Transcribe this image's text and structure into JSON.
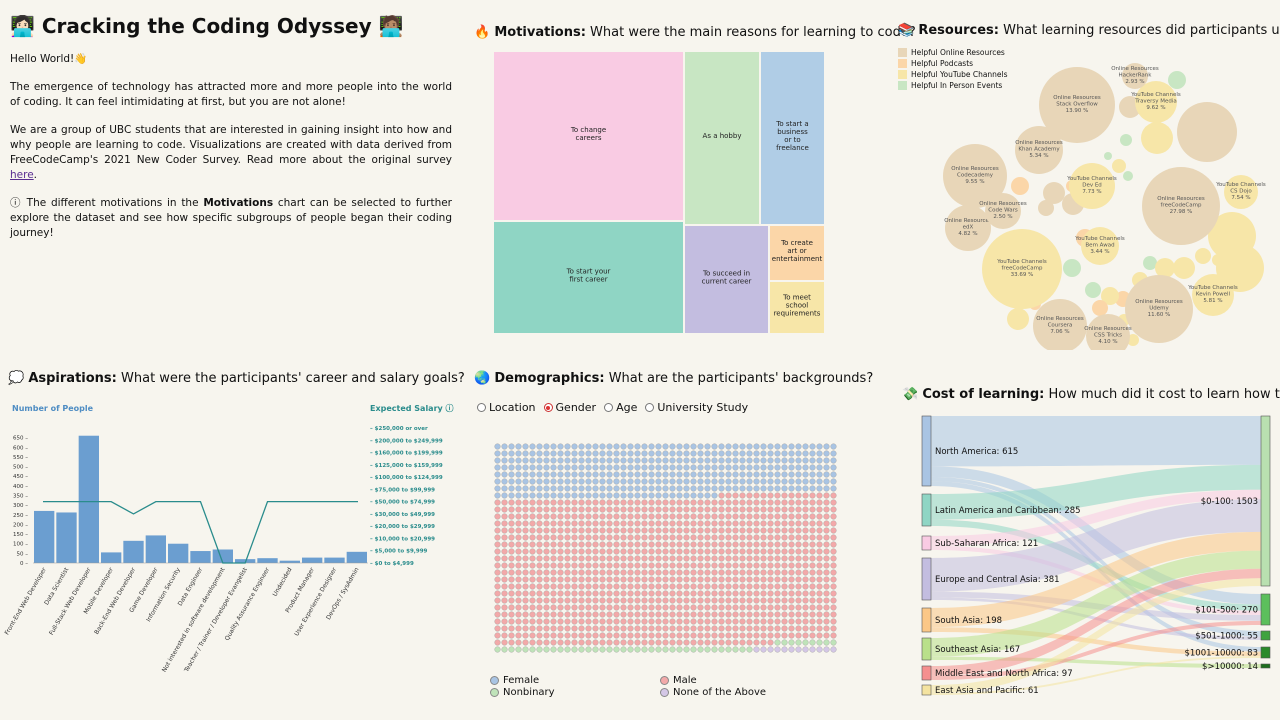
{
  "intro": {
    "title": "Cracking the Coding Odyssey",
    "greeting": "Hello World!👋",
    "p1": "The emergence of technology has attracted more and more people into the world of coding. It can feel intimidating at first, but you are not alone!",
    "p2_before": "We are a group of UBC students that are interested in gaining insight into how and why people are learning to code. Visualizations are created with data derived from FreeCodeCamp's 2021 New Coder Survey. Read more about the original survey ",
    "p2_link": "here",
    "p2_after": ".",
    "p3_before": "ⓘ The different motivations in the ",
    "p3_bold": "Motivations",
    "p3_after": " chart can be selected to further explore the dataset and see how specific subgroups of people began their coding journey!"
  },
  "motivations": {
    "title_bold": "Motivations:",
    "title_rest": " What were the main reasons for learning to code?",
    "cells": [
      {
        "label": "To change careers",
        "color": "#f9cbe3"
      },
      {
        "label": "As a hobby",
        "color": "#c8e6c3"
      },
      {
        "label": "To start a business or to freelance",
        "color": "#b0cde6"
      },
      {
        "label": "To start your first career",
        "color": "#8fd5c4"
      },
      {
        "label": "To succeed in current career",
        "color": "#c3bde0"
      },
      {
        "label": "To create art or entertainment",
        "color": "#fbd6a8"
      },
      {
        "label": "To meet school requirements",
        "color": "#f7e6a8"
      }
    ]
  },
  "resources": {
    "title_bold": "Resources:",
    "title_rest": " What learning resources did participants use?",
    "legend": [
      {
        "label": "Helpful Online Resources",
        "color": "#e8d6b8"
      },
      {
        "label": "Helpful Podcasts",
        "color": "#fbd6a8"
      },
      {
        "label": "Helpful YouTube Channels",
        "color": "#f7e6a8"
      },
      {
        "label": "Helpful In Person Events",
        "color": "#c8e6c3"
      }
    ],
    "bubbles": [
      {
        "name": "Online Resources",
        "sub": "freeCodeCamp",
        "pct": "27.98 %",
        "color": "#e8d6b8"
      },
      {
        "name": "YouTube Channels",
        "sub": "freeCodeCamp",
        "pct": "33.69 %",
        "color": "#f7e6a8"
      },
      {
        "name": "Online Resources",
        "sub": "Stack Overflow",
        "pct": "13.90 %",
        "color": "#e8d6b8"
      },
      {
        "name": "Online Resources",
        "sub": "Udemy",
        "pct": "11.60 %",
        "color": "#e8d6b8"
      },
      {
        "name": "Online Resources",
        "sub": "Codecademy",
        "pct": "9.55 %",
        "color": "#e8d6b8"
      },
      {
        "name": "YouTube Channels",
        "sub": "Traversy Media",
        "pct": "9.62 %",
        "color": "#f7e6a8"
      },
      {
        "name": "Online Resources",
        "sub": "Coursera",
        "pct": "7.06 %",
        "color": "#e8d6b8"
      },
      {
        "name": "YouTube Channels",
        "sub": "Dev Ed",
        "pct": "7.73 %",
        "color": "#f7e6a8"
      },
      {
        "name": "YouTube Channels",
        "sub": "CS Dojo",
        "pct": "7.54 %",
        "color": "#f7e6a8"
      },
      {
        "name": "YouTube Channels",
        "sub": "Kevin Powell",
        "pct": "5.81 %",
        "color": "#f7e6a8"
      },
      {
        "name": "Online Resources",
        "sub": "Khan Academy",
        "pct": "5.34 %",
        "color": "#e8d6b8"
      },
      {
        "name": "Online Resources",
        "sub": "edX",
        "pct": "4.82 %",
        "color": "#e8d6b8"
      },
      {
        "name": "Online Resources",
        "sub": "CSS Tricks",
        "pct": "4.10 %",
        "color": "#e8d6b8"
      },
      {
        "name": "YouTube Channels",
        "sub": "Bem Awad",
        "pct": "3.44 %",
        "color": "#f7e6a8"
      },
      {
        "name": "Online Resources",
        "sub": "HackerRank",
        "pct": "2.93 %",
        "color": "#e8d6b8"
      },
      {
        "name": "Online Resources",
        "sub": "Code Wars",
        "pct": "2.50 %",
        "color": "#e8d6b8"
      }
    ]
  },
  "aspirations": {
    "title_bold": "Aspirations:",
    "title_rest": " What were the participants' career and salary goals?",
    "left_axis_title": "Number of People",
    "right_axis_title": "Expected Salary ⓘ",
    "bar_color": "#6b9ed0",
    "line_color": "#2a8c8c",
    "chart_data": {
      "type": "bar",
      "categories": [
        "Front-End Web Developer",
        "Data Scientist",
        "Full-Stack Web Developer",
        "Mobile Developer",
        "Back-End Web Developer",
        "Game Developer",
        "Information Security",
        "Data Engineer",
        "Not interested in software development",
        "Teacher / Trainer / Developer Evangelist",
        "Quality Assurance Engineer",
        "Undecided",
        "Product Manager",
        "User Experience Designer",
        "DevOps / SysAdmin"
      ],
      "values": [
        270,
        262,
        660,
        55,
        115,
        143,
        100,
        62,
        70,
        20,
        25,
        12,
        28,
        28,
        58
      ],
      "ylim": [
        0,
        700
      ],
      "yticks": [
        0,
        50,
        100,
        150,
        200,
        250,
        300,
        350,
        400,
        450,
        500,
        550,
        600,
        650
      ],
      "salary_levels": [
        "$0 to $4,999",
        "$5,000 to $9,999",
        "$10,000 to $20,999",
        "$20,000 to $29,999",
        "$30,000 to $49,999",
        "$50,000 to $74,999",
        "$75,000 to $99,999",
        "$100,000 to $124,999",
        "$125,000 to $159,999",
        "$160,000 to $199,999",
        "$200,000 to $249,999",
        "$250,000 or over"
      ],
      "salary_values": [
        "$50,000 to $74,999",
        "$50,000 to $74,999",
        "$50,000 to $74,999",
        "$50,000 to $74,999",
        "$30,000 to $49,999",
        "$50,000 to $74,999",
        "$50,000 to $74,999",
        "$50,000 to $74,999",
        "$0 to $4,999",
        "$0 to $4,999",
        "$50,000 to $74,999",
        "$50,000 to $74,999",
        "$50,000 to $74,999",
        "$50,000 to $74,999",
        "$50,000 to $74,999"
      ]
    }
  },
  "demographics": {
    "title_bold": "Demographics:",
    "title_rest": " What are the participants' backgrounds?",
    "options": [
      "Location",
      "Gender",
      "Age",
      "University Study"
    ],
    "selected": "Gender",
    "legend": [
      {
        "label": "Female",
        "color": "#a9c4e3"
      },
      {
        "label": "Male",
        "color": "#f2a9a9"
      },
      {
        "label": "Nonbinary",
        "color": "#bfe3b9"
      },
      {
        "label": "None of the Above",
        "color": "#d4c7e6"
      }
    ]
  },
  "cost": {
    "title_bold": "Cost of learning:",
    "title_rest": " How much did it cost to learn how to code?",
    "sources": [
      {
        "label": "North America: 615",
        "value": 615,
        "color": "#a9c4e3"
      },
      {
        "label": "Latin America and Caribbean: 285",
        "value": 285,
        "color": "#8fd5c4"
      },
      {
        "label": "Sub-Saharan Africa: 121",
        "value": 121,
        "color": "#f9cbe3"
      },
      {
        "label": "Europe and Central Asia: 381",
        "value": 381,
        "color": "#c3bde0"
      },
      {
        "label": "South Asia: 198",
        "value": 198,
        "color": "#fbc787"
      },
      {
        "label": "Southeast Asia: 167",
        "value": 167,
        "color": "#b9e08a"
      },
      {
        "label": "Middle East and North Africa: 97",
        "value": 97,
        "color": "#f58f8f"
      },
      {
        "label": "East Asia and Pacific: 61",
        "value": 61,
        "color": "#f4e3a0"
      }
    ],
    "targets": [
      {
        "label": "$0-100: 1503",
        "value": 1503,
        "color": "#b9e0b0"
      },
      {
        "label": "$101-500: 270",
        "value": 270,
        "color": "#5cbf5c"
      },
      {
        "label": "$501-1000: 55",
        "value": 55,
        "color": "#3fa33f"
      },
      {
        "label": "$1001-10000: 83",
        "value": 83,
        "color": "#2a8a2a"
      },
      {
        "label": "$>10000: 14",
        "value": 14,
        "color": "#1d6e1d"
      }
    ]
  }
}
